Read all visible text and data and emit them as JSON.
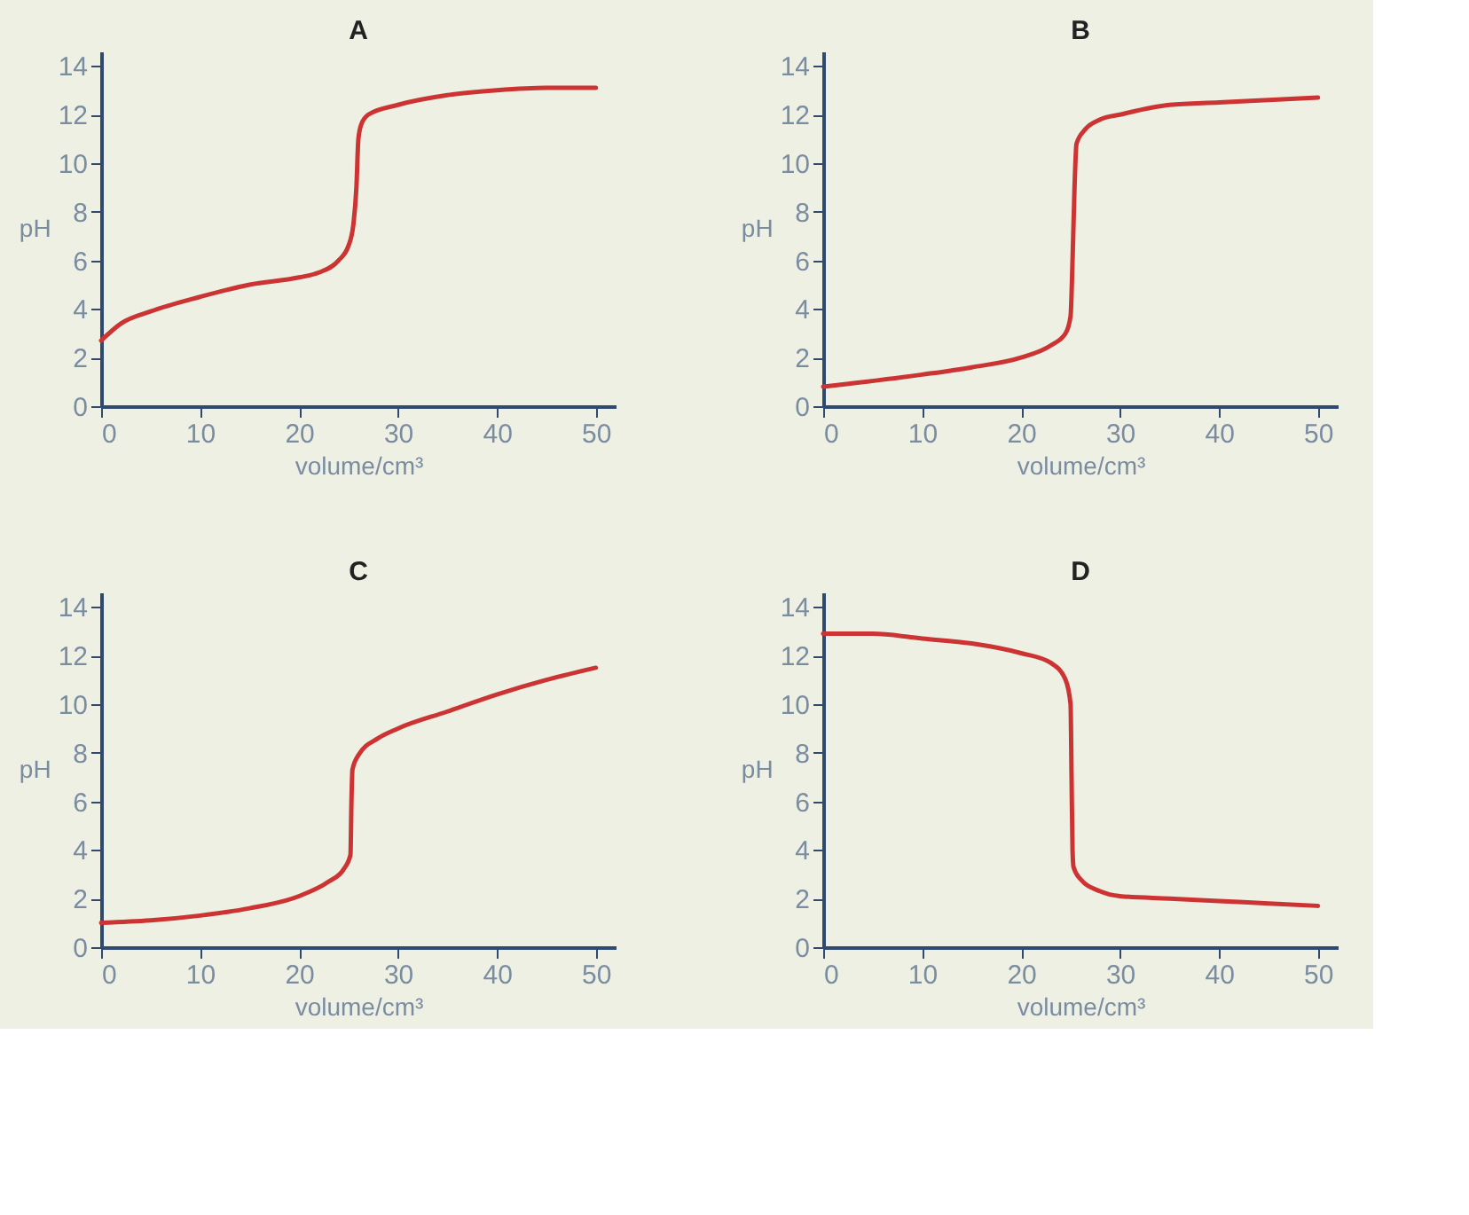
{
  "chart_data": [
    {
      "type": "line",
      "title": "A",
      "xlabel": "volume/cm³",
      "ylabel": "pH",
      "xlim": [
        0,
        52
      ],
      "ylim": [
        0,
        14.6
      ],
      "xticks": [
        0,
        10,
        20,
        30,
        40,
        50
      ],
      "yticks": [
        0,
        2,
        4,
        6,
        8,
        10,
        12,
        14
      ],
      "series": [
        {
          "color": "#cc3333",
          "x": [
            0,
            2,
            5,
            10,
            15,
            20,
            22,
            24,
            25,
            25.5,
            25.8,
            26,
            26.3,
            27,
            30,
            35,
            40,
            45,
            50
          ],
          "values": [
            2.7,
            3.4,
            3.9,
            4.5,
            5.0,
            5.3,
            5.5,
            6.0,
            6.6,
            7.5,
            9,
            11,
            11.6,
            12.0,
            12.4,
            12.8,
            13.0,
            13.1,
            13.1
          ]
        }
      ]
    },
    {
      "type": "line",
      "title": "B",
      "xlabel": "volume/cm³",
      "ylabel": "pH",
      "xlim": [
        0,
        52
      ],
      "ylim": [
        0,
        14.6
      ],
      "xticks": [
        0,
        10,
        20,
        30,
        40,
        50
      ],
      "yticks": [
        0,
        2,
        4,
        6,
        8,
        10,
        12,
        14
      ],
      "series": [
        {
          "color": "#cc3333",
          "x": [
            0,
            10,
            15,
            20,
            23,
            24.5,
            25,
            25.2,
            25.4,
            25.6,
            26.5,
            28,
            30,
            35,
            40,
            45,
            50
          ],
          "values": [
            0.8,
            1.3,
            1.6,
            2.0,
            2.5,
            3.0,
            3.7,
            6,
            9,
            10.8,
            11.4,
            11.8,
            12.0,
            12.4,
            12.5,
            12.6,
            12.7
          ]
        }
      ]
    },
    {
      "type": "line",
      "title": "C",
      "xlabel": "volume/cm³",
      "ylabel": "pH",
      "xlim": [
        0,
        52
      ],
      "ylim": [
        0,
        14.6
      ],
      "xticks": [
        0,
        10,
        20,
        30,
        40,
        50
      ],
      "yticks": [
        0,
        2,
        4,
        6,
        8,
        10,
        12,
        14
      ],
      "series": [
        {
          "color": "#cc3333",
          "x": [
            0,
            5,
            10,
            15,
            20,
            23,
            24.5,
            25.2,
            25.3,
            25.4,
            26,
            28,
            30,
            35,
            40,
            45,
            50
          ],
          "values": [
            1.0,
            1.1,
            1.3,
            1.6,
            2.1,
            2.7,
            3.2,
            3.8,
            6,
            7.3,
            7.9,
            8.6,
            9.0,
            9.7,
            10.4,
            11.0,
            11.5
          ]
        }
      ]
    },
    {
      "type": "line",
      "title": "D",
      "xlabel": "volume/cm³",
      "ylabel": "pH",
      "xlim": [
        0,
        52
      ],
      "ylim": [
        0,
        14.6
      ],
      "xticks": [
        0,
        10,
        20,
        30,
        40,
        50
      ],
      "yticks": [
        0,
        2,
        4,
        6,
        8,
        10,
        12,
        14
      ],
      "series": [
        {
          "color": "#cc3333",
          "x": [
            0,
            5,
            10,
            15,
            20,
            23,
            24.5,
            25,
            25.1,
            25.2,
            25.3,
            26,
            28,
            30,
            35,
            40,
            45,
            50
          ],
          "values": [
            12.9,
            12.9,
            12.7,
            12.5,
            12.1,
            11.7,
            11.0,
            10,
            7,
            4,
            3.3,
            2.8,
            2.3,
            2.1,
            2.0,
            1.9,
            1.8,
            1.7
          ]
        }
      ]
    }
  ]
}
